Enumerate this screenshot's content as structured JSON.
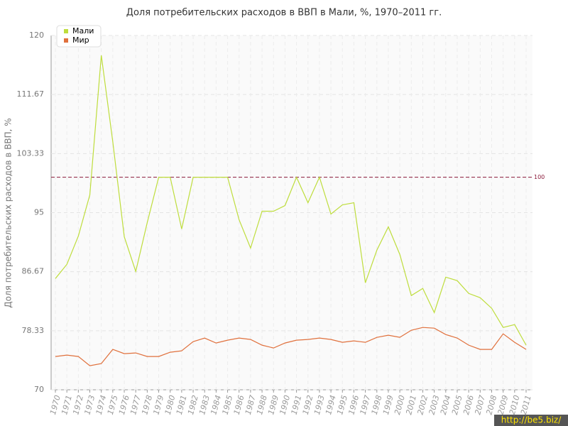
{
  "chart_data": {
    "type": "line",
    "title": "Доля потребительских расходов в ВВП в Мали, %, 1970–2011 гг.",
    "y_label": "Доля потребительских расходов в ВВП, %",
    "categories": [
      "1970",
      "1971",
      "1972",
      "1973",
      "1974",
      "1975",
      "1976",
      "1977",
      "1978",
      "1979",
      "1980",
      "1981",
      "1982",
      "1983",
      "1984",
      "1985",
      "1986",
      "1987",
      "1988",
      "1989",
      "1990",
      "1991",
      "1992",
      "1993",
      "1994",
      "1995",
      "1996",
      "1997",
      "1998",
      "1999",
      "2000",
      "2001",
      "2002",
      "2003",
      "2004",
      "2005",
      "2006",
      "2007",
      "2008",
      "2009",
      "2010",
      "2011"
    ],
    "series": [
      {
        "name": "Мали",
        "color": "#bedd3c",
        "values": [
          85.7,
          87.7,
          91.7,
          97.5,
          117.2,
          105,
          91.6,
          86.7,
          93.6,
          100,
          100,
          92.7,
          100,
          100,
          100,
          100,
          94,
          90,
          95.2,
          95.2,
          96,
          100,
          96.4,
          100,
          94.8,
          96.1,
          96.4,
          85.1,
          89.7,
          93,
          89.1,
          83.3,
          84.3,
          80.9,
          85.9,
          85.4,
          83.6,
          83,
          81.5,
          78.8,
          79.2,
          76.3
        ]
      },
      {
        "name": "Мир",
        "color": "#e0703c",
        "values": [
          74.7,
          74.9,
          74.7,
          73.4,
          73.7,
          75.7,
          75.1,
          75.2,
          74.7,
          74.7,
          75.3,
          75.5,
          76.8,
          77.3,
          76.6,
          77,
          77.3,
          77.1,
          76.3,
          75.9,
          76.6,
          77,
          77.1,
          77.3,
          77.1,
          76.7,
          76.9,
          76.7,
          77.4,
          77.7,
          77.4,
          78.4,
          78.8,
          78.7,
          77.8,
          77.3,
          76.3,
          75.7,
          75.7,
          77.9,
          76.7,
          75.7
        ]
      }
    ],
    "ylim": [
      70,
      120
    ],
    "yticks": [
      70,
      78.33,
      86.67,
      95,
      103.33,
      111.67,
      120
    ],
    "reference_line": 100,
    "reference_color": "#8b1a3a",
    "grid": true,
    "legend": "top-left",
    "watermark": "http://be5.biz/"
  }
}
